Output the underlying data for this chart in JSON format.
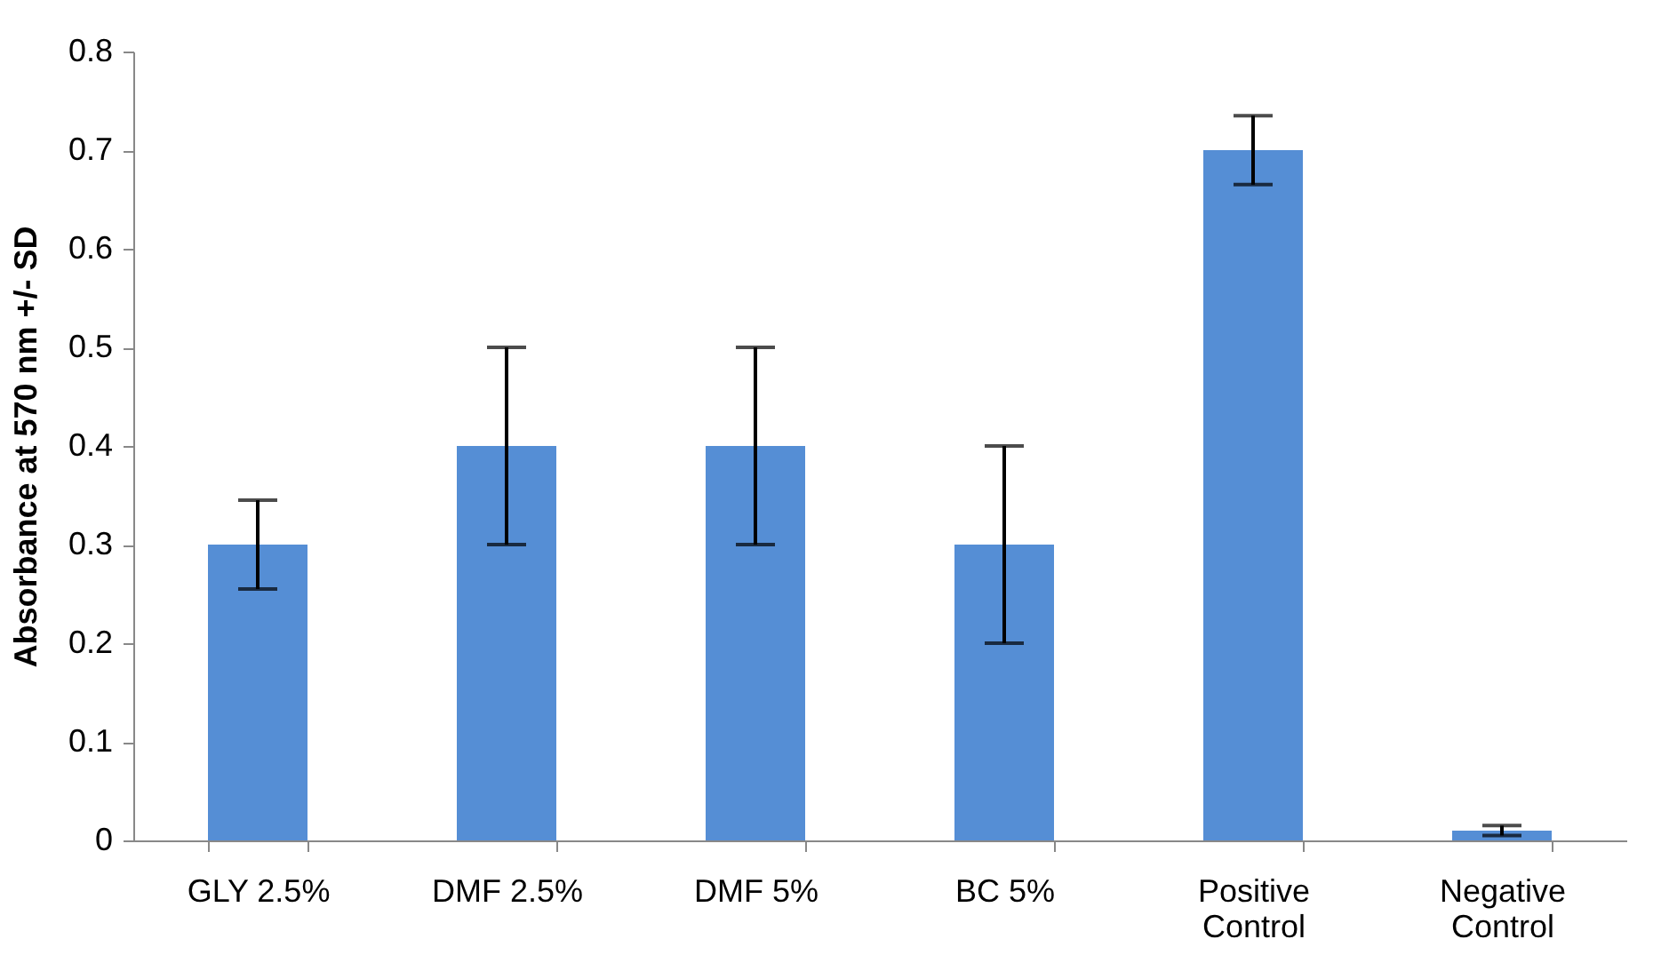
{
  "chart_data": {
    "type": "bar",
    "ylabel": "Absorbance at 570 nm +/- SD",
    "categories": [
      "GLY 2.5%",
      "DMF 2.5%",
      "DMF 5%",
      "BC 5%",
      "Positive Control",
      "Negative Control"
    ],
    "values": [
      0.3,
      0.4,
      0.4,
      0.3,
      0.7,
      0.01
    ],
    "errors": [
      0.045,
      0.1,
      0.1,
      0.1,
      0.035,
      0.005
    ],
    "color": "#558ed5",
    "ylim": [
      0,
      0.8
    ],
    "yticks": [
      0,
      0.1,
      0.2,
      0.3,
      0.4,
      0.5,
      0.6,
      0.7,
      0.8
    ],
    "grid": false
  }
}
